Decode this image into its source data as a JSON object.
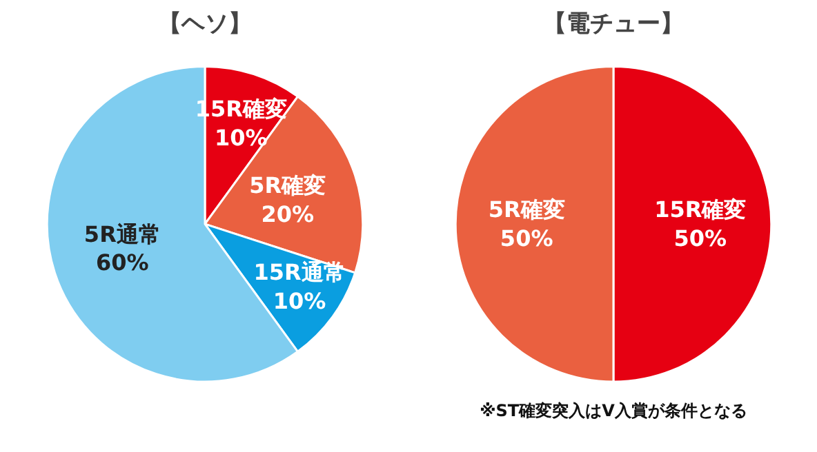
{
  "chart_data": [
    {
      "type": "pie",
      "title": "【ヘソ】",
      "categories": [
        "15R確変",
        "5R確変",
        "15R通常",
        "5R通常"
      ],
      "values": [
        10,
        20,
        10,
        60
      ],
      "value_labels": [
        "10%",
        "20%",
        "10%",
        "60%"
      ],
      "colors": [
        "#e60012",
        "#ea6040",
        "#0a9ee0",
        "#7fcdf0"
      ]
    },
    {
      "type": "pie",
      "title": "【電チュー】",
      "categories": [
        "15R確変",
        "5R確変"
      ],
      "values": [
        50,
        50
      ],
      "value_labels": [
        "50%",
        "50%"
      ],
      "colors": [
        "#e60012",
        "#ea6040"
      ],
      "annotations": [
        "※ST確変突入はV入賞が条件となる"
      ]
    }
  ]
}
